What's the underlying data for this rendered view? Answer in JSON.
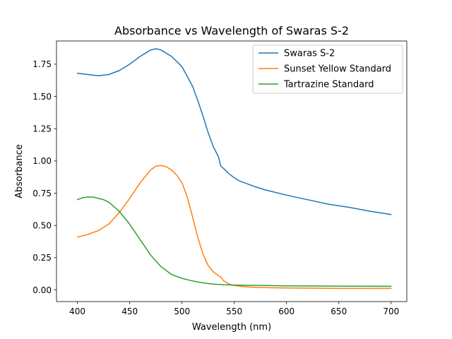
{
  "chart_data": {
    "type": "line",
    "title": "Absorbance vs Wavelength of Swaras S-2",
    "xlabel": "Wavelength (nm)",
    "ylabel": "Absorbance",
    "xlim": [
      380,
      715
    ],
    "ylim": [
      -0.09,
      1.93
    ],
    "xticks": [
      400,
      450,
      500,
      550,
      600,
      650,
      700
    ],
    "yticks": [
      0.0,
      0.25,
      0.5,
      0.75,
      1.0,
      1.25,
      1.5,
      1.75
    ],
    "ytick_labels": [
      "0.00",
      "0.25",
      "0.50",
      "0.75",
      "1.00",
      "1.25",
      "1.50",
      "1.75"
    ],
    "grid": false,
    "legend_position": "top-right",
    "series": [
      {
        "name": "Swaras S-2",
        "color": "#1f77b4",
        "x": [
          400,
          410,
          420,
          430,
          440,
          450,
          460,
          470,
          475,
          480,
          490,
          500,
          510,
          515,
          520,
          525,
          530,
          535,
          537,
          540,
          545,
          550,
          555,
          560,
          570,
          580,
          600,
          620,
          640,
          660,
          680,
          700
        ],
        "y": [
          1.68,
          1.67,
          1.66,
          1.67,
          1.7,
          1.75,
          1.81,
          1.86,
          1.87,
          1.86,
          1.81,
          1.73,
          1.58,
          1.47,
          1.35,
          1.22,
          1.11,
          1.03,
          0.96,
          0.94,
          0.9,
          0.87,
          0.845,
          0.83,
          0.8,
          0.775,
          0.735,
          0.7,
          0.665,
          0.64,
          0.61,
          0.585
        ]
      },
      {
        "name": "Sunset Yellow Standard",
        "color": "#ff7f0e",
        "x": [
          400,
          410,
          420,
          430,
          440,
          450,
          460,
          470,
          475,
          480,
          485,
          490,
          495,
          500,
          505,
          510,
          515,
          520,
          525,
          530,
          535,
          537,
          540,
          545,
          550,
          560,
          570,
          580,
          600,
          650,
          700
        ],
        "y": [
          0.41,
          0.43,
          0.46,
          0.51,
          0.6,
          0.71,
          0.83,
          0.93,
          0.96,
          0.965,
          0.955,
          0.93,
          0.89,
          0.83,
          0.72,
          0.57,
          0.41,
          0.28,
          0.19,
          0.14,
          0.11,
          0.1,
          0.07,
          0.045,
          0.035,
          0.025,
          0.02,
          0.018,
          0.015,
          0.012,
          0.012
        ]
      },
      {
        "name": "Tartrazine Standard",
        "color": "#2ca02c",
        "x": [
          400,
          405,
          410,
          415,
          420,
          425,
          430,
          440,
          450,
          460,
          470,
          480,
          490,
          500,
          510,
          520,
          530,
          540,
          550,
          560,
          580,
          600,
          650,
          700
        ],
        "y": [
          0.7,
          0.715,
          0.72,
          0.72,
          0.71,
          0.7,
          0.68,
          0.61,
          0.51,
          0.39,
          0.27,
          0.18,
          0.12,
          0.09,
          0.07,
          0.055,
          0.045,
          0.04,
          0.038,
          0.036,
          0.034,
          0.032,
          0.03,
          0.028
        ]
      }
    ]
  }
}
